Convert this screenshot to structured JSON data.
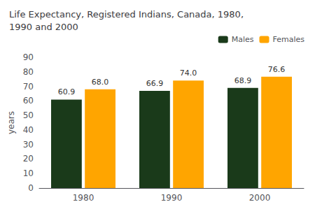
{
  "chart_data": {
    "type": "bar",
    "title": "Life Expectancy, Registered Indians, Canada, 1980,\n1990 and 2000",
    "y_label": "years",
    "categories": [
      "1980",
      "1990",
      "2000"
    ],
    "series": [
      {
        "name": "Males",
        "color": "#1a3a1a",
        "values": [
          60.9,
          66.9,
          68.9
        ]
      },
      {
        "name": "Females",
        "color": "#FFA500",
        "values": [
          68.0,
          74.0,
          76.6
        ],
        "value_labels": [
          "68.0",
          "74.0",
          "76.6"
        ]
      }
    ],
    "ylim": [
      0,
      90
    ],
    "yticks": [
      0,
      10,
      20,
      30,
      40,
      50,
      60,
      70,
      80,
      90
    ],
    "grid": false,
    "legend": "upper right",
    "data_labels": true
  }
}
